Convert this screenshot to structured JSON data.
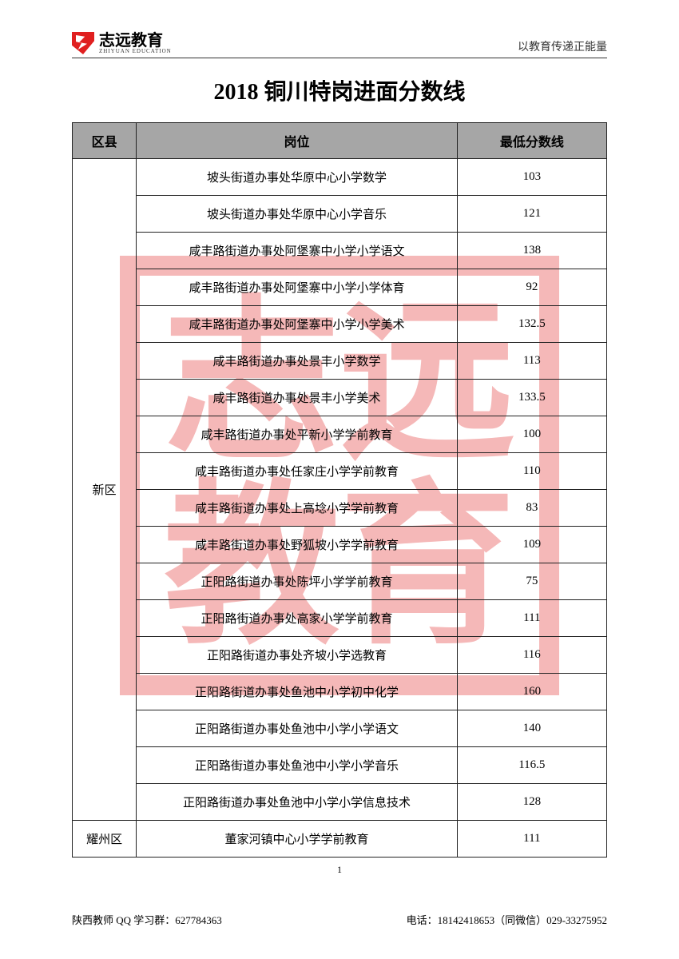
{
  "header": {
    "logo_main": "志远教育",
    "logo_sub": "ZHIYUAN EDUCATION",
    "slogan": "以教育传递正能量"
  },
  "title": "2018 铜川特岗进面分数线",
  "watermark_chars": [
    "志",
    "远",
    "教",
    "育"
  ],
  "table": {
    "columns": [
      "区县",
      "岗位",
      "最低分数线"
    ],
    "groups": [
      {
        "district": "新区",
        "rows": [
          {
            "position": "坡头街道办事处华原中心小学数学",
            "score": "103"
          },
          {
            "position": "坡头街道办事处华原中心小学音乐",
            "score": "121"
          },
          {
            "position": "咸丰路街道办事处阿堡寨中小学小学语文",
            "score": "138"
          },
          {
            "position": "咸丰路街道办事处阿堡寨中小学小学体育",
            "score": "92"
          },
          {
            "position": "咸丰路街道办事处阿堡寨中小学小学美术",
            "score": "132.5"
          },
          {
            "position": "咸丰路街道办事处景丰小学数学",
            "score": "113"
          },
          {
            "position": "咸丰路街道办事处景丰小学美术",
            "score": "133.5"
          },
          {
            "position": "咸丰路街道办事处平新小学学前教育",
            "score": "100"
          },
          {
            "position": "咸丰路街道办事处任家庄小学学前教育",
            "score": "110"
          },
          {
            "position": "咸丰路街道办事处上高埝小学学前教育",
            "score": "83"
          },
          {
            "position": "咸丰路街道办事处野狐坡小学学前教育",
            "score": "109"
          },
          {
            "position": "正阳路街道办事处陈坪小学学前教育",
            "score": "75"
          },
          {
            "position": "正阳路街道办事处高家小学学前教育",
            "score": "111"
          },
          {
            "position": "正阳路街道办事处齐坡小学选教育",
            "score": "116"
          },
          {
            "position": "正阳路街道办事处鱼池中小学初中化学",
            "score": "160"
          },
          {
            "position": "正阳路街道办事处鱼池中小学小学语文",
            "score": "140"
          },
          {
            "position": "正阳路街道办事处鱼池中小学小学音乐",
            "score": "116.5"
          },
          {
            "position": "正阳路街道办事处鱼池中小学小学信息技术",
            "score": "128"
          }
        ]
      },
      {
        "district": "耀州区",
        "rows": [
          {
            "position": "董家河镇中心小学学前教育",
            "score": "111"
          }
        ]
      }
    ]
  },
  "page_number": "1",
  "footer": {
    "left": "陕西教师 QQ 学习群：627784363",
    "right": "电话：18142418653（同微信）029-33275952"
  },
  "colors": {
    "header_bg": "#a6a6a6",
    "border": "#222222",
    "watermark": "#f5b8b8",
    "logo_red": "#e02020",
    "text": "#000000"
  }
}
